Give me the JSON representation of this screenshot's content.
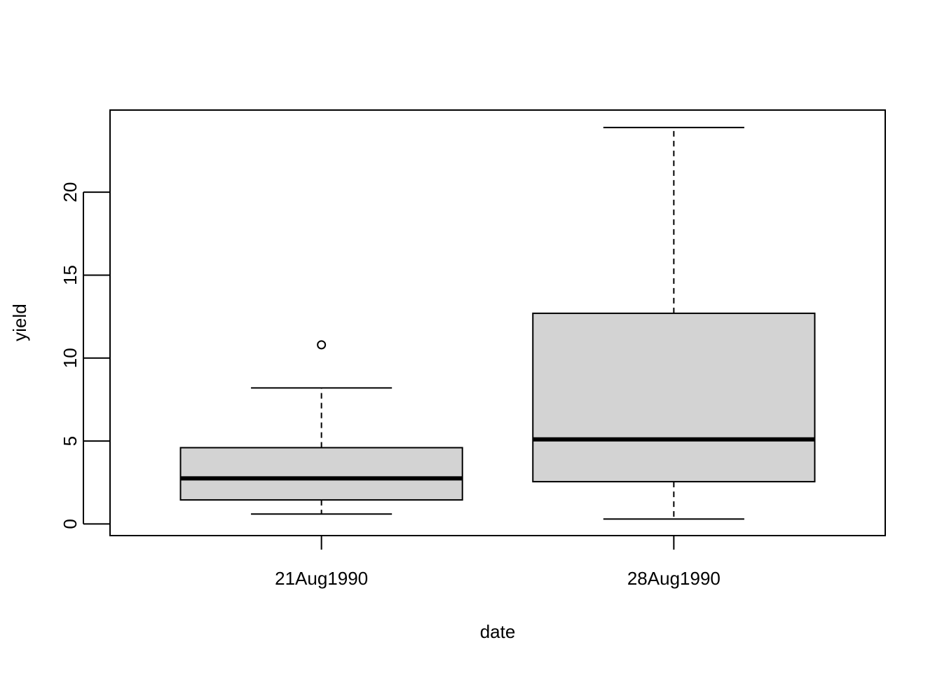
{
  "chart_data": {
    "type": "boxplot",
    "title": "",
    "xlabel": "date",
    "ylabel": "yield",
    "ylim": [
      -0.7,
      24.95
    ],
    "yticks": [
      0,
      5,
      10,
      15,
      20
    ],
    "ytick_labels": [
      "0",
      "5",
      "10",
      "15",
      "20"
    ],
    "categories": [
      "21Aug1990",
      "28Aug1990"
    ],
    "boxes": [
      {
        "category": "21Aug1990",
        "lower_whisker": 0.6,
        "q1": 1.45,
        "median": 2.75,
        "q3": 4.6,
        "upper_whisker": 8.2,
        "outliers": [
          10.8
        ]
      },
      {
        "category": "28Aug1990",
        "lower_whisker": 0.3,
        "q1": 2.55,
        "median": 5.1,
        "q3": 12.7,
        "upper_whisker": 23.9,
        "outliers": []
      }
    ],
    "colors": {
      "box_fill": "#d3d3d3",
      "stroke": "#000000"
    }
  }
}
